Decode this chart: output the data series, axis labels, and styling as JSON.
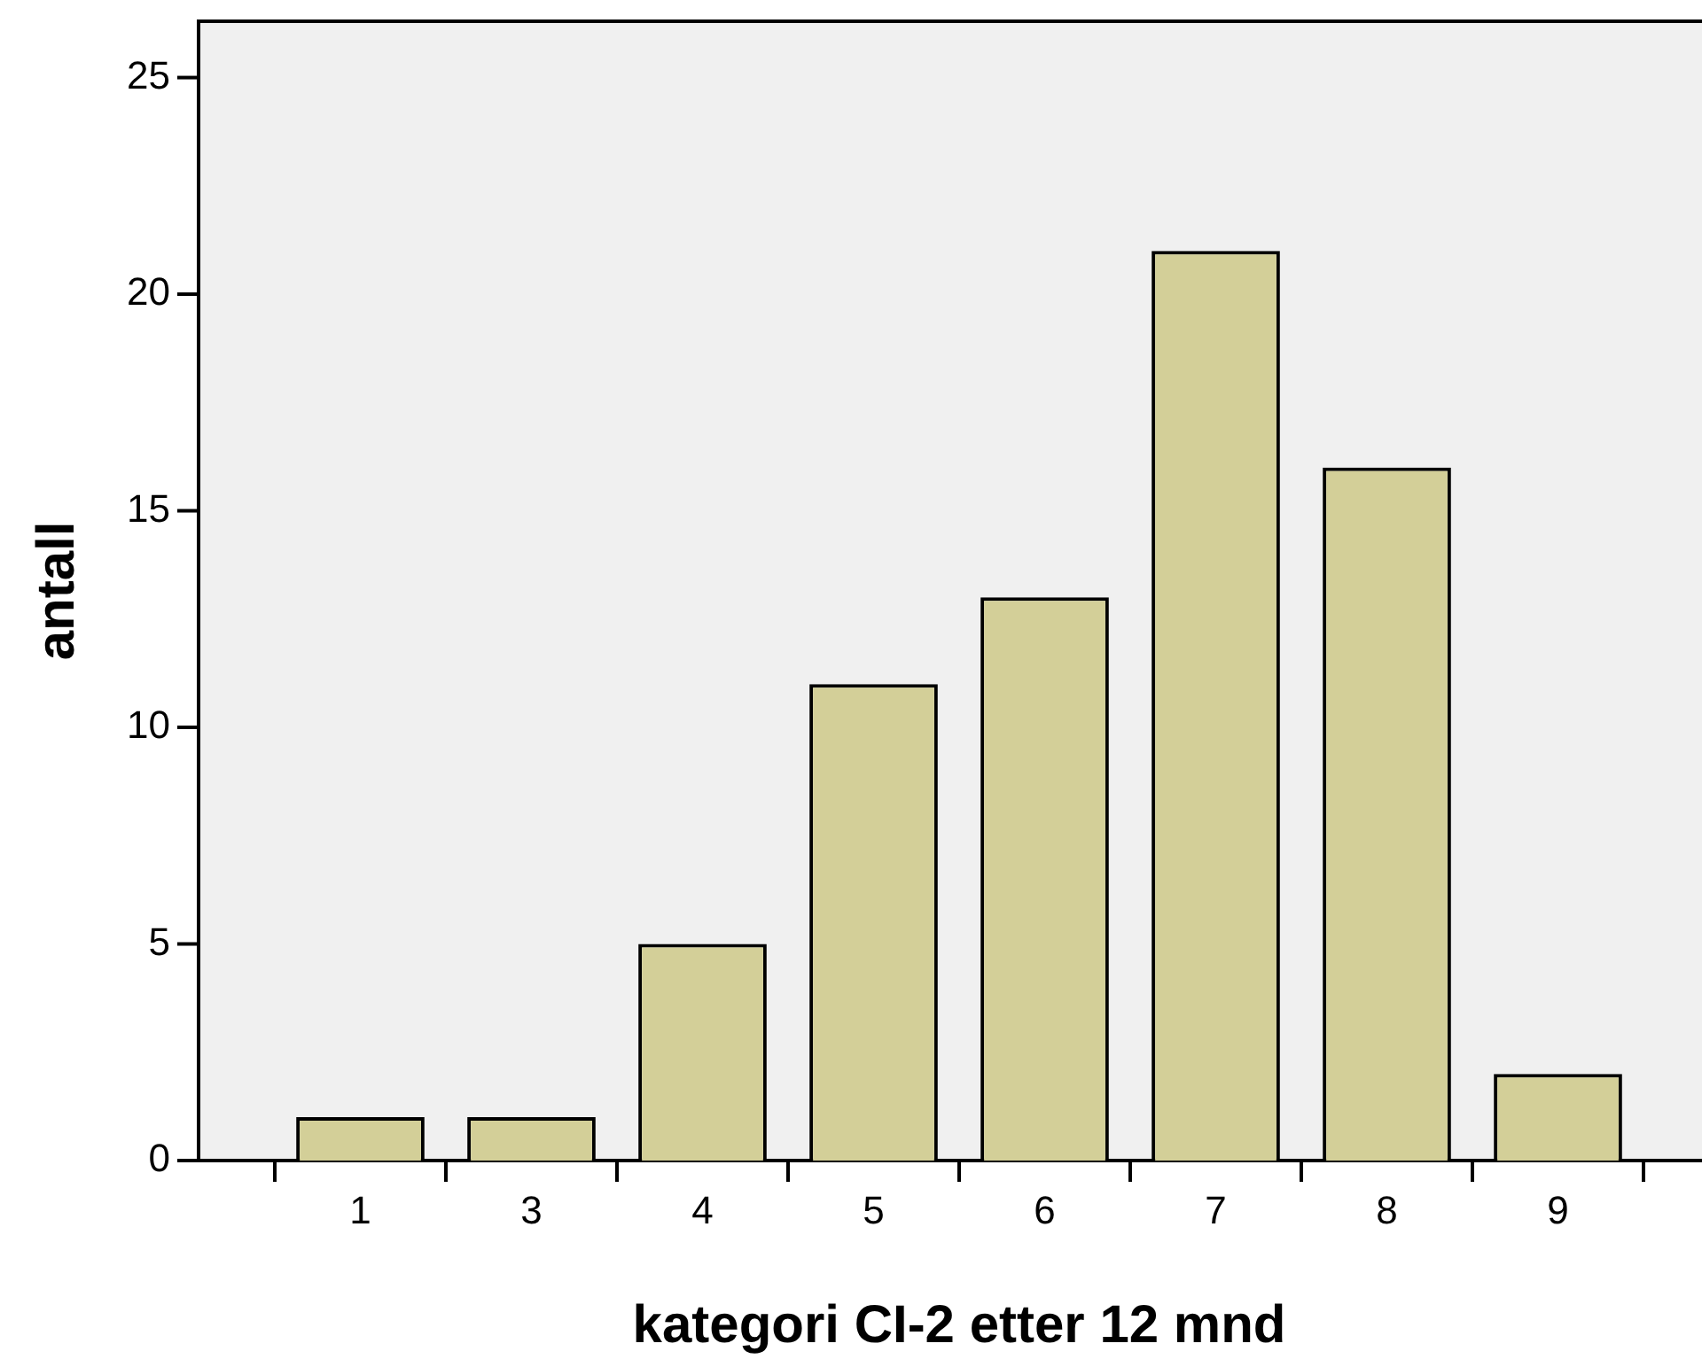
{
  "chart_data": {
    "type": "bar",
    "xlabel": "kategori CI-2 etter 12 mnd",
    "ylabel": "antall",
    "categories": [
      "1",
      "3",
      "4",
      "5",
      "6",
      "7",
      "8",
      "9"
    ],
    "values": [
      1,
      1,
      5,
      11,
      13,
      21,
      16,
      2
    ],
    "color": "#d3cf98",
    "ylim": [
      0,
      26.3
    ],
    "yticks": [
      0,
      5,
      10,
      15,
      20,
      25
    ],
    "grid": false,
    "legend": false
  }
}
